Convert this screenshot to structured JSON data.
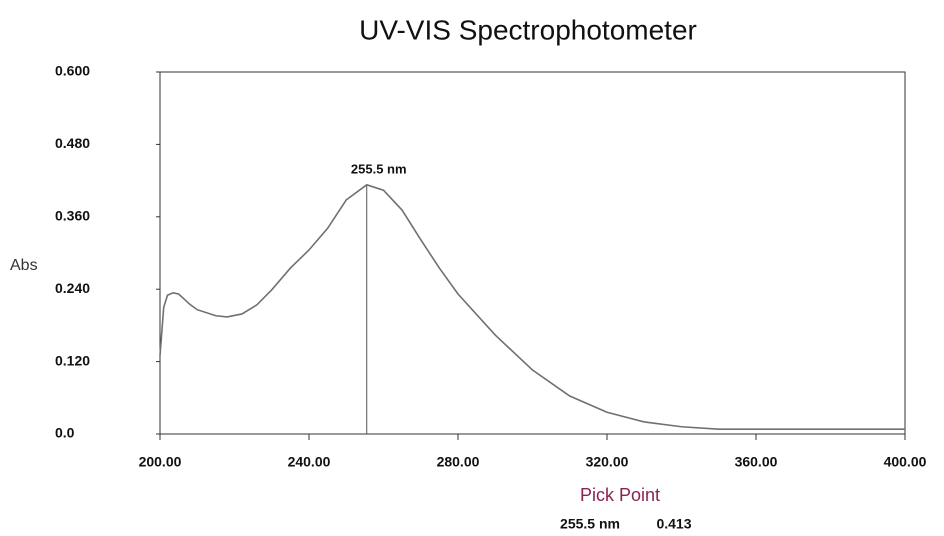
{
  "chart_data": {
    "type": "line",
    "title": "UV-VIS Spectrophotometer",
    "y_label": "Abs",
    "x": [
      200,
      201,
      202,
      203.5,
      205,
      208,
      210,
      215,
      218,
      222,
      226,
      230,
      235,
      240,
      245,
      250,
      255.5,
      260,
      265,
      270,
      275,
      280,
      290,
      300,
      310,
      320,
      330,
      340,
      350,
      400
    ],
    "series": [
      {
        "color": "#707070",
        "values": [
          0.13,
          0.21,
          0.23,
          0.234,
          0.232,
          0.215,
          0.206,
          0.196,
          0.194,
          0.199,
          0.214,
          0.239,
          0.275,
          0.305,
          0.341,
          0.388,
          0.413,
          0.404,
          0.371,
          0.322,
          0.275,
          0.232,
          0.164,
          0.106,
          0.063,
          0.036,
          0.02,
          0.012,
          0.008,
          0.008
        ]
      }
    ],
    "xlim": [
      200,
      400
    ],
    "xticks": [
      {
        "value": 200,
        "label": "200.00"
      },
      {
        "value": 240,
        "label": "240.00"
      },
      {
        "value": 280,
        "label": "280.00"
      },
      {
        "value": 320,
        "label": "320.00"
      },
      {
        "value": 360,
        "label": "360.00"
      },
      {
        "value": 400,
        "label": "400.00"
      }
    ],
    "ylim": [
      0,
      0.6
    ],
    "yticks": [
      {
        "value": 0,
        "label": "0.0"
      },
      {
        "value": 0.12,
        "label": "0.120"
      },
      {
        "value": 0.24,
        "label": "0.240"
      },
      {
        "value": 0.36,
        "label": "0.360"
      },
      {
        "value": 0.48,
        "label": "0.480"
      },
      {
        "value": 0.6,
        "label": "0.600"
      }
    ],
    "annotations": [
      {
        "x": 255.5,
        "y": 0.413,
        "label": "255.5 nm"
      }
    ],
    "pick_point": {
      "title": "Pick Point",
      "x_label": "255.5 nm",
      "y": 0.413
    }
  }
}
